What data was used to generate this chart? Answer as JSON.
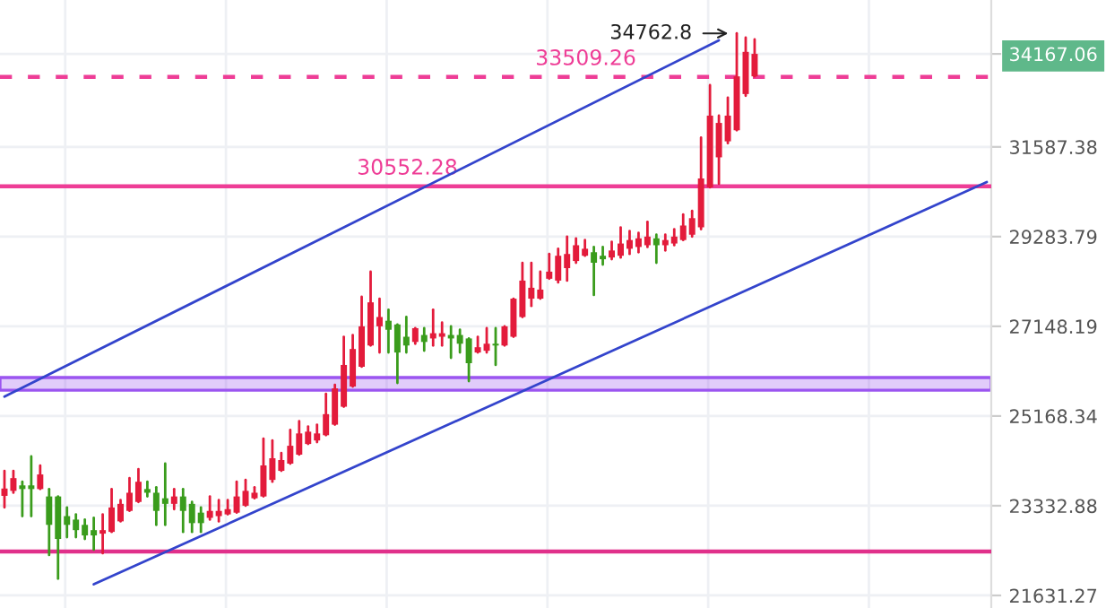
{
  "chart_data": {
    "type": "candlestick",
    "categories": [
      null,
      null,
      null,
      null,
      null,
      null,
      null,
      null,
      null,
      null,
      null,
      null,
      null,
      null,
      null,
      null,
      null,
      null,
      null,
      null,
      null,
      null,
      null,
      null,
      null,
      null,
      null,
      null,
      null,
      null,
      null,
      null,
      null,
      null,
      null,
      null,
      null,
      null,
      null,
      null,
      null,
      null,
      null,
      null,
      null,
      null,
      null,
      null,
      null,
      null,
      null,
      null,
      null,
      null,
      null,
      null,
      null,
      null,
      null,
      null,
      null,
      null,
      null,
      null,
      null,
      null,
      null,
      null,
      null,
      null,
      null,
      null,
      null,
      null,
      null,
      null,
      null,
      null,
      null,
      null,
      null,
      null,
      null,
      null,
      null,
      null,
      null,
      null,
      null,
      null,
      null,
      null,
      null,
      null,
      null,
      null,
      null,
      null,
      null,
      null,
      null,
      null,
      null,
      null,
      null,
      null,
      null,
      null,
      null,
      null,
      null
    ],
    "ohlc": [
      [
        23528,
        24030,
        23299,
        23674
      ],
      [
        23627,
        24030,
        23590,
        23883
      ],
      [
        23737,
        23810,
        23129,
        23664
      ],
      [
        23737,
        24324,
        23129,
        23664
      ],
      [
        23664,
        24140,
        23664,
        23957
      ],
      [
        23516,
        23664,
        22381,
        22959
      ],
      [
        23516,
        23516,
        21939,
        22687
      ],
      [
        23129,
        23299,
        22721,
        22959
      ],
      [
        23061,
        23163,
        22721,
        22857
      ],
      [
        22959,
        23061,
        22687,
        22755
      ],
      [
        22857,
        23095,
        22483,
        22755
      ],
      [
        22789,
        23163,
        22415,
        22857
      ],
      [
        22823,
        23664,
        22823,
        23299
      ],
      [
        23027,
        23443,
        23027,
        23370
      ],
      [
        23231,
        23883,
        23231,
        23590
      ],
      [
        23407,
        24067,
        23407,
        23810
      ],
      [
        23664,
        23810,
        23516,
        23590
      ],
      [
        23590,
        23700,
        22959,
        23231
      ],
      [
        23480,
        24177,
        22959,
        23370
      ],
      [
        23370,
        23664,
        23265,
        23516
      ],
      [
        23516,
        23664,
        22823,
        23231
      ],
      [
        23370,
        23407,
        22823,
        22993
      ],
      [
        23197,
        23299,
        22823,
        22993
      ],
      [
        23095,
        23516,
        23061,
        23231
      ],
      [
        23129,
        23443,
        23027,
        23231
      ],
      [
        23163,
        23443,
        23163,
        23265
      ],
      [
        23197,
        23810,
        23197,
        23516
      ],
      [
        23333,
        23847,
        23333,
        23627
      ],
      [
        23480,
        23700,
        23480,
        23590
      ],
      [
        23516,
        24691,
        23516,
        24140
      ],
      [
        23847,
        24654,
        23810,
        24287
      ],
      [
        24030,
        24397,
        24030,
        24250
      ],
      [
        24177,
        24874,
        24177,
        24544
      ],
      [
        24361,
        25058,
        24361,
        24801
      ],
      [
        24581,
        24948,
        24581,
        24838
      ],
      [
        24654,
        24985,
        24618,
        24801
      ],
      [
        24764,
        25643,
        24764,
        25208
      ],
      [
        24985,
        25841,
        24985,
        25762
      ],
      [
        25366,
        26910,
        25366,
        26277
      ],
      [
        25802,
        26950,
        25802,
        26633
      ],
      [
        26237,
        27832,
        26237,
        27148
      ],
      [
        26712,
        28430,
        26712,
        27703
      ],
      [
        27148,
        27789,
        26554,
        27362
      ],
      [
        27276,
        27533,
        26554,
        27069
      ],
      [
        27191,
        27191,
        25881,
        26554
      ],
      [
        26910,
        27362,
        26554,
        26712
      ],
      [
        26792,
        27106,
        26752,
        27106
      ],
      [
        26950,
        27106,
        26594,
        26792
      ],
      [
        26871,
        27533,
        26712,
        26990
      ],
      [
        26910,
        27234,
        26712,
        26990
      ],
      [
        26950,
        27148,
        26435,
        26871
      ],
      [
        26950,
        27069,
        26554,
        26752
      ],
      [
        26871,
        26871,
        25920,
        26316
      ],
      [
        26554,
        26910,
        26554,
        26673
      ],
      [
        26594,
        27106,
        26554,
        26752
      ],
      [
        26752,
        27106,
        26277,
        26712
      ],
      [
        26712,
        27148,
        26712,
        27148
      ],
      [
        26910,
        27789,
        26910,
        27789
      ],
      [
        27362,
        28644,
        27362,
        28216
      ],
      [
        27789,
        28644,
        27618,
        28046
      ],
      [
        27789,
        28430,
        27789,
        28003
      ],
      [
        28260,
        28857,
        28260,
        28430
      ],
      [
        28216,
        28985,
        28174,
        28814
      ],
      [
        28515,
        29284,
        28216,
        28857
      ],
      [
        28686,
        29241,
        28644,
        29071
      ],
      [
        28814,
        29199,
        28814,
        28985
      ],
      [
        28900,
        29028,
        27875,
        28644
      ],
      [
        28814,
        29028,
        28601,
        28729
      ],
      [
        28772,
        29156,
        28729,
        28942
      ],
      [
        28814,
        29512,
        28772,
        29113
      ],
      [
        28985,
        29422,
        28857,
        29199
      ],
      [
        29028,
        29376,
        28900,
        29241
      ],
      [
        29071,
        29653,
        29028,
        29284
      ],
      [
        29241,
        29330,
        28644,
        29071
      ],
      [
        29071,
        29330,
        28942,
        29199
      ],
      [
        29113,
        29468,
        29071,
        29284
      ],
      [
        29199,
        29835,
        29199,
        29559
      ],
      [
        29330,
        29927,
        29284,
        29743
      ],
      [
        29514,
        31836,
        29468,
        30757
      ],
      [
        30527,
        33277,
        30527,
        32432
      ],
      [
        31310,
        32432,
        30619,
        32233
      ],
      [
        31736,
        32929,
        31686,
        32432
      ],
      [
        32034,
        34762.8,
        32034,
        33525
      ],
      [
        33028,
        34639,
        32979,
        34226
      ],
      [
        33525,
        34587,
        33525,
        34167.06
      ],
      null,
      null,
      null,
      null,
      null,
      null,
      null,
      null,
      null,
      null,
      null,
      null,
      null,
      null,
      null,
      null,
      null,
      null,
      null,
      null,
      null,
      null,
      null,
      null,
      null,
      null
    ],
    "colors": [
      "#e31b3b",
      "#e31b3b",
      "#3a9c1c",
      "#3a9c1c",
      "#e31b3b",
      "#3a9c1c",
      "#3a9c1c",
      "#3a9c1c",
      "#3a9c1c",
      "#3a9c1c",
      "#3a9c1c",
      "#e31b3b",
      "#e31b3b",
      "#e31b3b",
      "#e31b3b",
      "#e31b3b",
      "#3a9c1c",
      "#3a9c1c",
      "#3a9c1c",
      "#e31b3b",
      "#3a9c1c",
      "#3a9c1c",
      "#3a9c1c",
      "#e31b3b",
      "#e31b3b",
      "#e31b3b",
      "#e31b3b",
      "#e31b3b",
      "#e31b3b",
      "#e31b3b",
      "#e31b3b",
      "#e31b3b",
      "#e31b3b",
      "#e31b3b",
      "#e31b3b",
      "#e31b3b",
      "#e31b3b",
      "#e31b3b",
      "#e31b3b",
      "#e31b3b",
      "#e31b3b",
      "#e31b3b",
      "#e31b3b",
      "#3a9c1c",
      "#3a9c1c",
      "#3a9c1c",
      "#e31b3b",
      "#3a9c1c",
      "#e31b3b",
      "#e31b3b",
      "#3a9c1c",
      "#3a9c1c",
      "#3a9c1c",
      "#e31b3b",
      "#e31b3b",
      "#3a9c1c",
      "#e31b3b",
      "#e31b3b",
      "#e31b3b",
      "#e31b3b",
      "#e31b3b",
      "#e31b3b",
      "#e31b3b",
      "#e31b3b",
      "#e31b3b",
      "#e31b3b",
      "#3a9c1c",
      "#3a9c1c",
      "#e31b3b",
      "#e31b3b",
      "#e31b3b",
      "#e31b3b",
      "#e31b3b",
      "#3a9c1c",
      "#e31b3b",
      "#e31b3b",
      "#e31b3b",
      "#e31b3b",
      "#e31b3b",
      "#e31b3b",
      "#e31b3b",
      "#e31b3b",
      "#e31b3b",
      "#e31b3b",
      "#e31b3b",
      null,
      null,
      null,
      null,
      null,
      null,
      null,
      null,
      null,
      null,
      null,
      null,
      null,
      null,
      null,
      null,
      null,
      null,
      null,
      null,
      null,
      null,
      null,
      null,
      null,
      null
    ],
    "series": [
      {
        "type": "line",
        "color": "#3344cc",
        "values": [
          25584,
          null,
          null,
          null,
          null,
          null,
          null,
          null,
          null,
          null,
          null,
          null,
          null,
          null,
          null,
          null,
          null,
          null,
          null,
          null,
          null,
          null,
          null,
          null,
          null,
          null,
          null,
          null,
          null,
          null,
          null,
          null,
          null,
          null,
          null,
          null,
          null,
          null,
          null,
          null,
          null,
          null,
          null,
          null,
          null,
          null,
          null,
          null,
          null,
          null,
          null,
          null,
          null,
          null,
          null,
          null,
          null,
          null,
          null,
          null,
          null,
          null,
          null,
          null,
          null,
          null,
          null,
          null,
          null,
          null,
          null,
          null,
          null,
          null,
          null,
          null,
          null,
          null,
          null,
          null,
          34561,
          null,
          null,
          null,
          null,
          null,
          null,
          null,
          null,
          null,
          null,
          null,
          null,
          null,
          null,
          null,
          null,
          null,
          null,
          null,
          null,
          null,
          null,
          null,
          null,
          null,
          null,
          null,
          null,
          null,
          null
        ]
      },
      {
        "type": "line",
        "color": "#3344cc",
        "values": [
          null,
          null,
          null,
          null,
          null,
          null,
          null,
          null,
          null,
          null,
          21835,
          null,
          null,
          null,
          null,
          null,
          null,
          null,
          null,
          null,
          null,
          null,
          null,
          null,
          null,
          null,
          null,
          null,
          null,
          null,
          null,
          null,
          null,
          null,
          null,
          null,
          null,
          null,
          null,
          null,
          null,
          null,
          null,
          null,
          null,
          null,
          null,
          null,
          null,
          null,
          null,
          null,
          null,
          null,
          null,
          null,
          null,
          null,
          null,
          null,
          null,
          null,
          null,
          null,
          null,
          null,
          null,
          null,
          null,
          null,
          null,
          null,
          null,
          null,
          null,
          null,
          null,
          null,
          null,
          null,
          null,
          null,
          null,
          null,
          null,
          null,
          null,
          null,
          null,
          null,
          null,
          null,
          null,
          null,
          null,
          null,
          null,
          null,
          null,
          null,
          null,
          null,
          null,
          null,
          null,
          null,
          null,
          null,
          null,
          null,
          30665
        ]
      }
    ],
    "ref_lines": [
      {
        "axis": "y",
        "value": 33509.26,
        "label": "33509.26",
        "color": "#ee3d96",
        "line_style": "dashed"
      },
      {
        "axis": "y",
        "value": 30552.28,
        "label": "30552.28",
        "color": "#ee3d96",
        "line_style": "solid"
      },
      {
        "axis": "y",
        "value": 22449,
        "color": "#e0308a",
        "line_style": "solid"
      }
    ],
    "bands": [
      {
        "axis": "y",
        "from": 25722,
        "to": 26000,
        "color": "#9b55f0"
      }
    ],
    "annotations": [
      "34762.8"
    ],
    "log": true,
    "ylim": [
      21403,
      35757
    ],
    "yticks": [
      21631.27,
      23332.88,
      25168.34,
      27148.19,
      29283.79,
      31587.38,
      34167.06
    ],
    "tick_labels": "y",
    "grid": true
  }
}
